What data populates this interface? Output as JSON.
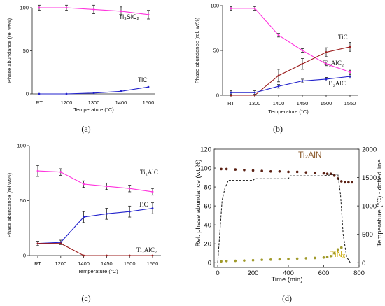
{
  "panels": [
    {
      "label": "(a)",
      "ylabel": "Phase abundance (rel wt%)",
      "xlabel": "Temperature (°C)",
      "chart_data": {
        "type": "line",
        "categories": [
          "RT",
          "1200",
          "1300",
          "1400",
          "1500"
        ],
        "ylim": [
          0,
          100
        ],
        "yticks": [
          "0",
          "50",
          "100"
        ],
        "series": [
          {
            "name": "Ti3SiC2",
            "name_display": "Ti₃SiC₂",
            "color": "#ff33dd",
            "values": [
              100,
              100,
              98,
              96,
              92
            ],
            "errors": [
              3,
              3,
              5,
              5,
              5
            ]
          },
          {
            "name": "TiC",
            "name_display": "TiC",
            "color": "#2222cc",
            "values": [
              0,
              0,
              1,
              3,
              8
            ],
            "errors": [
              0,
              0,
              0,
              0,
              0
            ]
          }
        ]
      }
    },
    {
      "label": "(b)",
      "ylabel": "Phase abundance (rel. wt%)",
      "xlabel": "Temperature (°C)",
      "chart_data": {
        "type": "line",
        "categories": [
          "RT",
          "1300",
          "1400",
          "1450",
          "1500",
          "1550"
        ],
        "ylim": [
          0,
          100
        ],
        "yticks": [
          "0",
          "50",
          "100"
        ],
        "series": [
          {
            "name": "Ti3AlC2",
            "name_display": "Ti₃AlC₂",
            "color": "#ff33dd",
            "values": [
              97,
              97,
              67,
              50,
              35,
              26
            ],
            "errors": [
              2,
              2,
              2,
              2,
              2,
              2
            ]
          },
          {
            "name": "TiC",
            "name_display": "TiC",
            "color": "#9b1b1b",
            "values": [
              0,
              0,
              22,
              35,
              48,
              54
            ],
            "errors": [
              0,
              0,
              7,
              6,
              5,
              5
            ]
          },
          {
            "name": "Ti2AlC",
            "name_display": "Ti₂AlC",
            "color": "#2222cc",
            "values": [
              3,
              3,
              10,
              16,
              18,
              21
            ],
            "errors": [
              2,
              2,
              2,
              2,
              2,
              2
            ]
          }
        ]
      }
    },
    {
      "label": "(c)",
      "ylabel": "Phase abundance (rel wt%)",
      "xlabel": "Temperature (°C)",
      "chart_data": {
        "type": "line",
        "categories": [
          "RT",
          "1200",
          "1400",
          "1450",
          "1500",
          "1550"
        ],
        "ylim": [
          0,
          100
        ],
        "yticks": [
          "0",
          "50",
          "100"
        ],
        "series": [
          {
            "name": "Ti2AlC",
            "name_display": "Ti₂AlC",
            "color": "#ff33dd",
            "values": [
              77,
              76,
              65,
              63,
              61,
              58
            ],
            "errors": [
              5,
              3,
              3,
              3,
              3,
              3
            ]
          },
          {
            "name": "TiC",
            "name_display": "TiC",
            "color": "#2222cc",
            "values": [
              11,
              12,
              35,
              38,
              40,
              43
            ],
            "errors": [
              2,
              2,
              5,
              5,
              5,
              5
            ]
          },
          {
            "name": "Ti3AlC2",
            "name_display": "Ti₃AlC₂",
            "color": "#9b1b1b",
            "values": [
              11,
              11,
              0,
              0,
              0,
              0
            ],
            "errors": [
              0,
              0,
              0,
              0,
              0,
              0
            ]
          }
        ]
      }
    },
    {
      "label": "(d)",
      "ylabel": "Rel. phase abundance (wt.%)",
      "ylabel_right": "Temperature (°C) - dotted line",
      "xlabel": "Time (min)",
      "chart_data": {
        "type": "scatter",
        "xlim": [
          -20,
          800
        ],
        "ylim": [
          -5,
          120
        ],
        "ylim_right": [
          -83,
          2000
        ],
        "xticks": [
          "0",
          "200",
          "400",
          "600",
          "800"
        ],
        "xtick_values": [
          0,
          200,
          400,
          600,
          800
        ],
        "yticks": [
          "0",
          "20",
          "40",
          "60",
          "80",
          "100",
          "120"
        ],
        "ytick_values": [
          0,
          20,
          40,
          60,
          80,
          100,
          120
        ],
        "yticks_right": [
          "0",
          "500",
          "1000",
          "1500",
          "2000"
        ],
        "ytick_values_right": [
          0,
          500,
          1000,
          1500,
          2000
        ],
        "series": [
          {
            "name": "Ti2AlN",
            "name_display": "Ti₂AlN",
            "color": "#5a1f12",
            "label_color": "#8b5a2b",
            "x": [
              20,
              50,
              100,
              150,
              200,
              250,
              300,
              350,
              400,
              450,
              500,
              550,
              600,
              620,
              640,
              660,
              680,
              700,
              720,
              740,
              760
            ],
            "y": [
              99,
              99,
              98.5,
              98,
              97.5,
              97,
              96.5,
              96.5,
              96,
              96,
              95.5,
              95,
              94.5,
              94,
              94,
              92,
              89,
              86,
              85,
              85,
              85
            ]
          },
          {
            "name": "TiNx",
            "name_display": "TiNₓ",
            "color": "#a09a2a",
            "label_color": "#c9a800",
            "x": [
              20,
              50,
              100,
              150,
              200,
              250,
              300,
              350,
              400,
              450,
              500,
              550,
              600,
              620,
              640,
              660,
              680,
              700
            ],
            "y": [
              1.5,
              1.8,
              2,
              2.3,
              2.6,
              3,
              3.3,
              3.6,
              4,
              4.3,
              4.7,
              5,
              5.5,
              6,
              7,
              10,
              14,
              16
            ]
          },
          {
            "name": "Temperature",
            "color": "#111111",
            "style": "dashed",
            "axis": "right",
            "x": [
              0,
              25,
              40,
              50,
              60,
              200,
              210,
              400,
              410,
              600,
              620,
              640,
              660,
              680,
              695,
              710,
              730,
              750
            ],
            "y": [
              0,
              1100,
              1300,
              1380,
              1450,
              1450,
              1480,
              1480,
              1530,
              1530,
              1540,
              1545,
              1560,
              1560,
              1200,
              500,
              100,
              0
            ]
          }
        ]
      }
    }
  ]
}
